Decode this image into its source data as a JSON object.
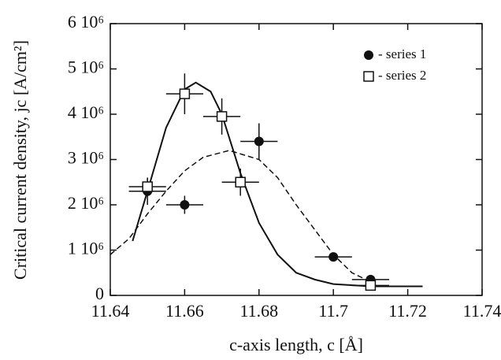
{
  "chart_data": {
    "type": "scatter",
    "x_label": "c-axis length, c [Å]",
    "y_label": "Critical current density, jc [A/cm²]",
    "xlim": [
      11.64,
      11.74
    ],
    "xticks": [
      11.64,
      11.66,
      11.68,
      11.7,
      11.72,
      11.74
    ],
    "ylim": [
      0,
      6000000
    ],
    "yticks": [
      0,
      {
        "value": 1000000,
        "label": "1 10⁶"
      },
      {
        "value": 2000000,
        "label": "2 10⁶"
      },
      {
        "value": 3000000,
        "label": "3 10⁶"
      },
      {
        "value": 4000000,
        "label": "4 10⁶"
      },
      {
        "value": 5000000,
        "label": "5 10⁶"
      },
      {
        "value": 6000000,
        "label": "6 10⁶"
      }
    ],
    "legend": "upper right",
    "series": [
      {
        "name": "- series 1",
        "marker": "circle",
        "color": "#111",
        "x": [
          11.65,
          11.66,
          11.68,
          11.7,
          11.71
        ],
        "values": [
          2300000,
          2000000,
          3400000,
          850000,
          350000
        ],
        "xerr": [
          0.005,
          0.005,
          0.005,
          0.005,
          0.005
        ],
        "yerr": [
          300000,
          200000,
          400000,
          50000,
          50000
        ]
      },
      {
        "name": "- series 2",
        "marker": "square",
        "color": "#111",
        "x": [
          11.65,
          11.66,
          11.67,
          11.675,
          11.71
        ],
        "values": [
          2400000,
          4450000,
          3950000,
          2500000,
          220000
        ],
        "xerr": [
          0.005,
          0.005,
          0.005,
          0.005,
          0.005
        ],
        "yerr": [
          200000,
          450000,
          400000,
          300000,
          50000
        ]
      }
    ],
    "fits": [
      {
        "dash": "solid",
        "x": [
          11.646,
          11.65,
          11.655,
          11.66,
          11.663,
          11.667,
          11.67,
          11.675,
          11.68,
          11.685,
          11.69,
          11.695,
          11.7,
          11.71,
          11.724
        ],
        "values": [
          1200000,
          2300000,
          3700000,
          4550000,
          4700000,
          4500000,
          4000000,
          2700000,
          1600000,
          900000,
          500000,
          350000,
          250000,
          200000,
          200000
        ]
      },
      {
        "dash": "dashed",
        "x": [
          11.64,
          11.645,
          11.65,
          11.655,
          11.66,
          11.665,
          11.672,
          11.68,
          11.685,
          11.69,
          11.695,
          11.7,
          11.705,
          11.71
        ],
        "values": [
          900000,
          1250000,
          1800000,
          2300000,
          2750000,
          3050000,
          3200000,
          3000000,
          2600000,
          2000000,
          1450000,
          900000,
          500000,
          300000
        ]
      }
    ]
  }
}
